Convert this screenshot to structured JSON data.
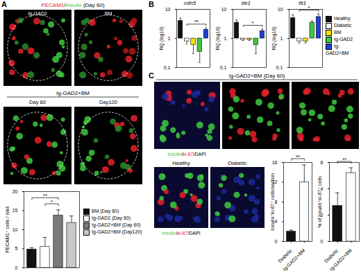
{
  "figure": {
    "letters": [
      "A",
      "B",
      "C"
    ],
    "a_images": {
      "header": [
        {
          "text": "PECAM1",
          "color": "#e8202a"
        },
        {
          "text": "/"
        },
        {
          "text": "Insulin",
          "color": "#3ec93e"
        },
        {
          "text": " (Day 60)"
        }
      ],
      "top": [
        "Ig-GAD2",
        "BM"
      ],
      "group": "Ig-GAD2+BM",
      "bottom": [
        "Day 60",
        "Day120"
      ]
    },
    "c_images": {
      "header": "Ig-GAD2+BM (Day 60)",
      "caption": [
        {
          "text": "Insulin",
          "color": "#3ec93e"
        },
        {
          "text": "/"
        },
        {
          "text": "ki-67",
          "color": "#e8202a"
        },
        {
          "text": "/DAPI"
        }
      ],
      "bottom": [
        "Healthy",
        "Diabetic"
      ]
    }
  },
  "chart_data": [
    {
      "type": "bar",
      "ylabel": "PECAM1⁺ cells / islet",
      "categories": [
        "BM (Day 60)",
        "Ig-GAD2 (Day 60)",
        "Ig-GAD2+BM (Day 60)",
        "Ig-GAD2+BM (Day120)"
      ],
      "values": [
        4.8,
        5.5,
        13.7,
        11.8
      ],
      "errors": [
        0.5,
        2.5,
        1.5,
        1.8
      ],
      "colors": [
        "#111111",
        "#ffffff",
        "#7a7a7a",
        "#c8c8c8"
      ],
      "ylim": [
        0,
        20
      ],
      "yticks": [
        0,
        5,
        10,
        15,
        20
      ],
      "significance": [
        {
          "pair": [
            1,
            2
          ],
          "label": "*"
        },
        {
          "pair": [
            0,
            2
          ],
          "label": "**"
        }
      ],
      "tick_labels": "y",
      "legend": "right"
    },
    {
      "type": "bar",
      "title": "cdh5",
      "ylabel": "RQ (log10)",
      "log": "y",
      "categories": [
        "Healthy",
        "Diabetic",
        "BM",
        "Ig-GAD2",
        "Ig-GAD2+BM"
      ],
      "values": [
        4,
        0.8,
        0.6,
        0.35,
        2
      ],
      "errors": [
        1,
        0.15,
        0.3,
        0.2,
        0.3
      ],
      "colors": [
        "#111111",
        "#ffffff",
        "#f2e600",
        "#3ec93e",
        "#1f3fd6"
      ],
      "ylim": [
        0.1,
        10
      ],
      "yticks": [
        0.1,
        1,
        10
      ],
      "significance": [
        {
          "pair": [
            1,
            4
          ],
          "label": "**"
        }
      ],
      "tick_labels": "y"
    },
    {
      "type": "bar",
      "title": "tie1",
      "ylabel": "RQ (log10)",
      "log": "y",
      "categories": [
        "Healthy",
        "Diabetic",
        "BM",
        "Ig-GAD2",
        "Ig-GAD2+BM"
      ],
      "values": [
        3.5,
        0.9,
        0.9,
        0.6,
        1.8
      ],
      "errors": [
        0.8,
        0.05,
        0.05,
        0.3,
        0.3
      ],
      "colors": [
        "#111111",
        "#ffffff",
        "#f2e600",
        "#3ec93e",
        "#1f3fd6"
      ],
      "ylim": [
        0.1,
        10
      ],
      "yticks": [
        0.1,
        1,
        10
      ],
      "significance": [
        {
          "pair": [
            1,
            4
          ],
          "label": "*"
        }
      ],
      "tick_labels": "y"
    },
    {
      "type": "bar",
      "title": "flt1",
      "ylabel": "RQ (log10)",
      "log": "y",
      "categories": [
        "Healthy",
        "Diabetic",
        "BM",
        "Ig-GAD2",
        "Ig-GAD2+BM"
      ],
      "values": [
        5,
        0.8,
        0.8,
        3.5,
        5.5
      ],
      "errors": [
        1.5,
        0.1,
        0.1,
        0.5,
        1.5
      ],
      "colors": [
        "#111111",
        "#ffffff",
        "#f2e600",
        "#3ec93e",
        "#1f3fd6"
      ],
      "ylim": [
        0.1,
        10
      ],
      "yticks": [
        0.1,
        1,
        10
      ],
      "significance": [
        {
          "pair": [
            1,
            4
          ],
          "label": "*"
        }
      ],
      "tick_labels": "y",
      "legend": "right"
    },
    {
      "type": "bar",
      "ylabel": "Insulin⁺ki-67⁺ cells/section",
      "categories": [
        "Diabetic",
        "Ig-GAD2+BM"
      ],
      "values": [
        2,
        12
      ],
      "errors": [
        0.3,
        3.5
      ],
      "colors": [
        "#111111",
        "#ffffff"
      ],
      "ylim": [
        0,
        16
      ],
      "yticks": [
        0,
        4,
        8,
        12,
        16
      ],
      "significance": [
        {
          "pair": [
            0,
            1
          ],
          "label": "**"
        }
      ]
    },
    {
      "type": "bar",
      "ylabel": "% of Insulin⁺ki-67⁺ cells",
      "categories": [
        "Diabetic",
        "Ig-GAD2+BM"
      ],
      "values": [
        2.7,
        5.2
      ],
      "errors": [
        1,
        0.4
      ],
      "colors": [
        "#111111",
        "#ffffff"
      ],
      "ylim": [
        0,
        6
      ],
      "yticks": [
        0,
        2,
        4,
        6
      ],
      "significance": [
        {
          "pair": [
            0,
            1
          ],
          "label": "**"
        }
      ]
    }
  ]
}
